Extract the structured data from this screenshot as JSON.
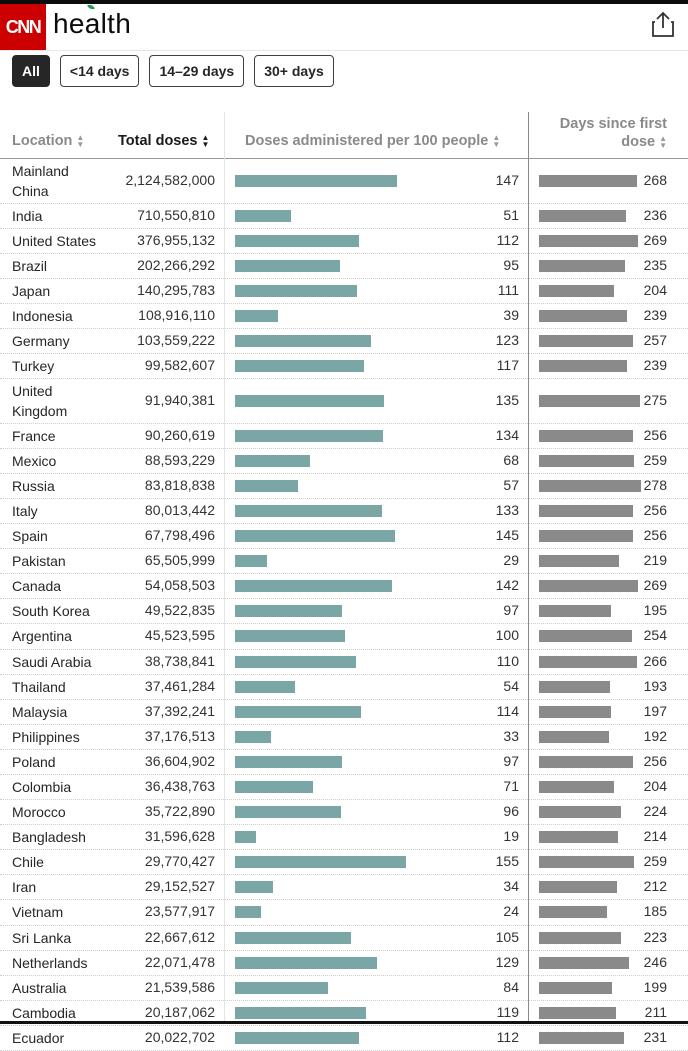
{
  "header": {
    "brand": "CNN",
    "section": "health",
    "share_icon": "share-icon"
  },
  "filters": [
    {
      "label": "All",
      "active": true
    },
    {
      "label": "<14 days",
      "active": false
    },
    {
      "label": "14–29 days",
      "active": false
    },
    {
      "label": "30+ days",
      "active": false
    }
  ],
  "table": {
    "columns": {
      "location": "Location",
      "total": "Total doses",
      "per100": "Doses administered per 100 people",
      "days_line1": "Days since first",
      "days_line2": "dose"
    },
    "colors": {
      "per100_bar": "#7aa7a5",
      "days_bar": "#8a8a8a"
    },
    "scale": {
      "per100_max": 155,
      "days_max": 278
    },
    "rows": [
      {
        "location": "Mainland China",
        "total": "2,124,582,000",
        "per100": 147,
        "days": 268
      },
      {
        "location": "India",
        "total": "710,550,810",
        "per100": 51,
        "days": 236
      },
      {
        "location": "United States",
        "total": "376,955,132",
        "per100": 112,
        "days": 269
      },
      {
        "location": "Brazil",
        "total": "202,266,292",
        "per100": 95,
        "days": 235
      },
      {
        "location": "Japan",
        "total": "140,295,783",
        "per100": 111,
        "days": 204
      },
      {
        "location": "Indonesia",
        "total": "108,916,110",
        "per100": 39,
        "days": 239
      },
      {
        "location": "Germany",
        "total": "103,559,222",
        "per100": 123,
        "days": 257
      },
      {
        "location": "Turkey",
        "total": "99,582,607",
        "per100": 117,
        "days": 239
      },
      {
        "location": "United Kingdom",
        "total": "91,940,381",
        "per100": 135,
        "days": 275
      },
      {
        "location": "France",
        "total": "90,260,619",
        "per100": 134,
        "days": 256
      },
      {
        "location": "Mexico",
        "total": "88,593,229",
        "per100": 68,
        "days": 259
      },
      {
        "location": "Russia",
        "total": "83,818,838",
        "per100": 57,
        "days": 278
      },
      {
        "location": "Italy",
        "total": "80,013,442",
        "per100": 133,
        "days": 256
      },
      {
        "location": "Spain",
        "total": "67,798,496",
        "per100": 145,
        "days": 256
      },
      {
        "location": "Pakistan",
        "total": "65,505,999",
        "per100": 29,
        "days": 219
      },
      {
        "location": "Canada",
        "total": "54,058,503",
        "per100": 142,
        "days": 269
      },
      {
        "location": "South Korea",
        "total": "49,522,835",
        "per100": 97,
        "days": 195
      },
      {
        "location": "Argentina",
        "total": "45,523,595",
        "per100": 100,
        "days": 254
      },
      {
        "location": "Saudi Arabia",
        "total": "38,738,841",
        "per100": 110,
        "days": 266
      },
      {
        "location": "Thailand",
        "total": "37,461,284",
        "per100": 54,
        "days": 193
      },
      {
        "location": "Malaysia",
        "total": "37,392,241",
        "per100": 114,
        "days": 197
      },
      {
        "location": "Philippines",
        "total": "37,176,513",
        "per100": 33,
        "days": 192
      },
      {
        "location": "Poland",
        "total": "36,604,902",
        "per100": 97,
        "days": 256
      },
      {
        "location": "Colombia",
        "total": "36,438,763",
        "per100": 71,
        "days": 204
      },
      {
        "location": "Morocco",
        "total": "35,722,890",
        "per100": 96,
        "days": 224
      },
      {
        "location": "Bangladesh",
        "total": "31,596,628",
        "per100": 19,
        "days": 214
      },
      {
        "location": "Chile",
        "total": "29,770,427",
        "per100": 155,
        "days": 259
      },
      {
        "location": "Iran",
        "total": "29,152,527",
        "per100": 34,
        "days": 212
      },
      {
        "location": "Vietnam",
        "total": "23,577,917",
        "per100": 24,
        "days": 185
      },
      {
        "location": "Sri Lanka",
        "total": "22,667,612",
        "per100": 105,
        "days": 223
      },
      {
        "location": "Netherlands",
        "total": "22,071,478",
        "per100": 129,
        "days": 246
      },
      {
        "location": "Australia",
        "total": "21,539,586",
        "per100": 84,
        "days": 199
      },
      {
        "location": "Cambodia",
        "total": "20,187,062",
        "per100": 119,
        "days": 211
      },
      {
        "location": "Ecuador",
        "total": "20,022,702",
        "per100": 112,
        "days": 231
      }
    ]
  }
}
